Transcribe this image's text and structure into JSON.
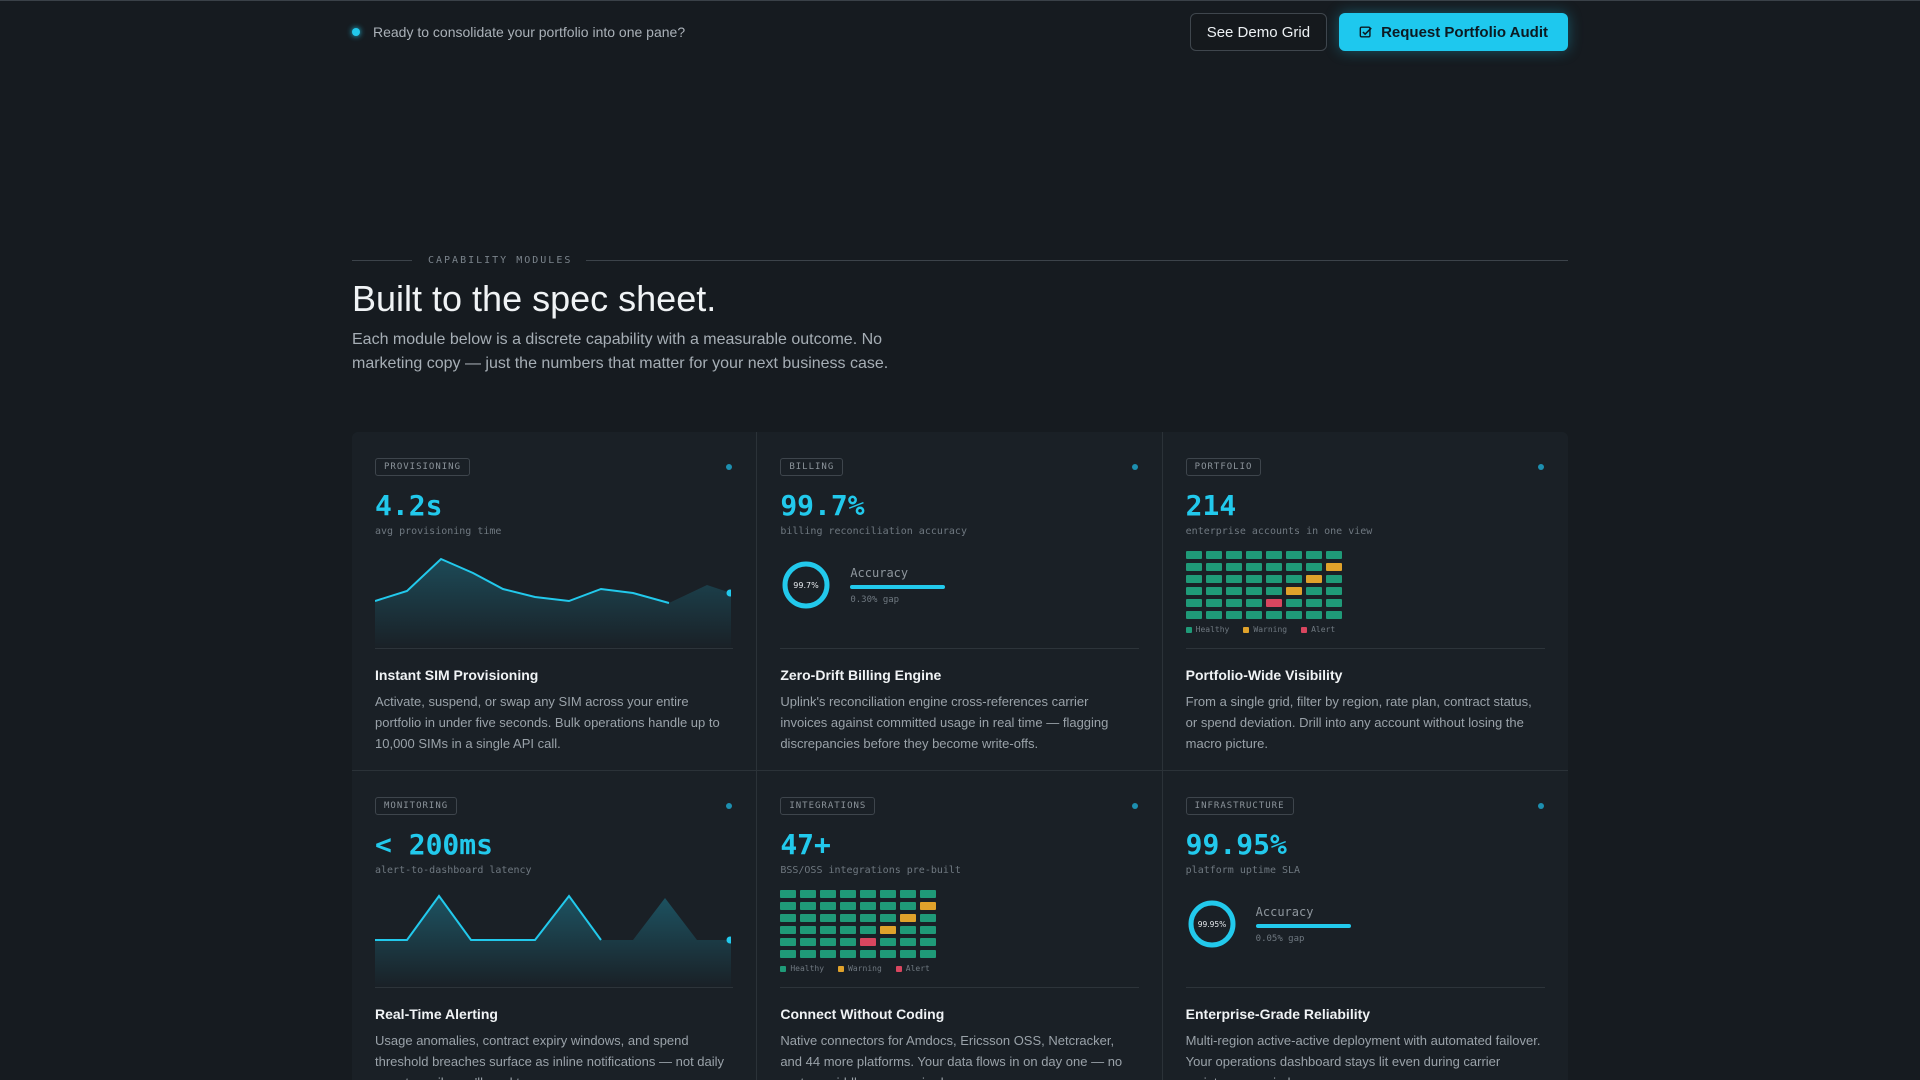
{
  "topbar": {
    "message": "Ready to consolidate your portfolio into one pane?",
    "demo_button": "See Demo Grid",
    "audit_button": "Request Portfolio Audit"
  },
  "section": {
    "eyebrow": "CAPABILITY MODULES",
    "title": "Built to the spec sheet.",
    "lede": "Each module below is a discrete capability with a measurable outcome. No marketing copy — just the numbers that matter for your next business case."
  },
  "colors": {
    "accent": "#22c9ec",
    "healthy": "#1f9a78",
    "warning": "#e0a22b",
    "alert": "#d9465f"
  },
  "legend": {
    "healthy": "Healthy",
    "warning": "Warning",
    "alert": "Alert"
  },
  "cards": [
    {
      "tag": "PROVISIONING",
      "metric": "4.2s",
      "metric_label": "avg provisioning time",
      "title": "Instant SIM Provisioning",
      "desc": "Activate, suspend, or swap any SIM across your entire portfolio in under five seconds. Bulk operations handle up to 10,000 SIMs in a single API call."
    },
    {
      "tag": "BILLING",
      "metric": "99.7%",
      "metric_label": "billing reconciliation accuracy",
      "gauge_value": "99.7%",
      "gauge_fraction": 0.997,
      "gauge_label": "Accuracy",
      "gauge_gap": "0.30% gap",
      "title": "Zero-Drift Billing Engine",
      "desc": "Uplink's reconciliation engine cross-references carrier invoices against committed usage in real time — flagging discrepancies before they become write-offs."
    },
    {
      "tag": "PORTFOLIO",
      "metric": "214",
      "metric_label": "enterprise accounts in one view",
      "title": "Portfolio-Wide Visibility",
      "desc": "From a single grid, filter by region, rate plan, contract status, or spend deviation. Drill into any account without losing the macro picture."
    },
    {
      "tag": "MONITORING",
      "metric": "< 200ms",
      "metric_label": "alert-to-dashboard latency",
      "title": "Real-Time Alerting",
      "desc": "Usage anomalies, contract expiry windows, and spend threshold breaches surface as inline notifications — not daily report emails you'll read tomorrow."
    },
    {
      "tag": "INTEGRATIONS",
      "metric": "47+",
      "metric_label": "BSS/OSS integrations pre-built",
      "title": "Connect Without Coding",
      "desc": "Native connectors for Amdocs, Ericsson OSS, Netcracker, and 44 more platforms. Your data flows in on day one — no custom middleware required."
    },
    {
      "tag": "INFRASTRUCTURE",
      "metric": "99.95%",
      "metric_label": "platform uptime SLA",
      "gauge_value": "99.95%",
      "gauge_fraction": 0.9995,
      "gauge_label": "Accuracy",
      "gauge_gap": "0.05% gap",
      "title": "Enterprise-Grade Reliability",
      "desc": "Multi-region active-active deployment with automated failover. Your operations dashboard stays lit even during carrier maintenance windows."
    }
  ],
  "heatmap_status": [
    [
      "h",
      "h",
      "h",
      "h",
      "h",
      "h",
      "h",
      "h"
    ],
    [
      "h",
      "h",
      "h",
      "h",
      "h",
      "h",
      "h",
      "w"
    ],
    [
      "h",
      "h",
      "h",
      "h",
      "h",
      "h",
      "w",
      "h"
    ],
    [
      "h",
      "h",
      "h",
      "h",
      "h",
      "w",
      "h",
      "h"
    ],
    [
      "h",
      "h",
      "h",
      "h",
      "a",
      "h",
      "h",
      "h"
    ],
    [
      "h",
      "h",
      "h",
      "h",
      "h",
      "h",
      "h",
      "h"
    ]
  ]
}
